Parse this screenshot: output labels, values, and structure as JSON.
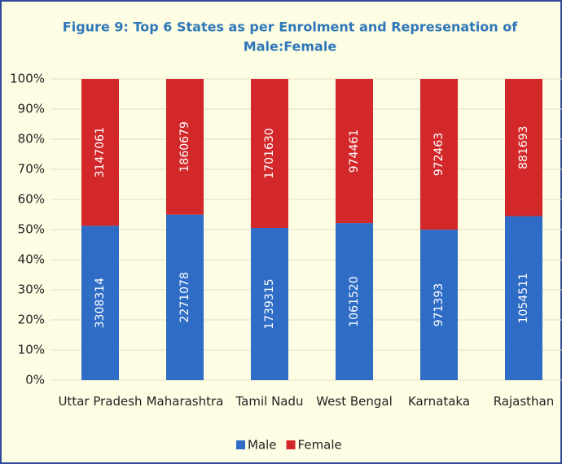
{
  "chart_data": {
    "type": "bar",
    "stacked": "percent",
    "title": [
      "Figure 9: Top 6 States as per Enrolment and Represenation of",
      "Male:Female"
    ],
    "categories": [
      "Uttar Pradesh",
      "Maharashtra",
      "Tamil Nadu",
      "West Bengal",
      "Karnataka",
      "Rajasthan"
    ],
    "series": [
      {
        "name": "Male",
        "color": "#2e6cc6",
        "values": [
          3308314,
          2271078,
          1739315,
          1061520,
          971393,
          1054511
        ]
      },
      {
        "name": "Female",
        "color": "#d3282a",
        "values": [
          3147061,
          1860679,
          1701630,
          974461,
          972463,
          881693
        ]
      }
    ],
    "ylim": [
      0,
      100
    ],
    "yticks": [
      {
        "value": 0,
        "label": "0%"
      },
      {
        "value": 10,
        "label": "10%"
      },
      {
        "value": 20,
        "label": "20%"
      },
      {
        "value": 30,
        "label": "30%"
      },
      {
        "value": 40,
        "label": "40%"
      },
      {
        "value": 50,
        "label": "50%"
      },
      {
        "value": 60,
        "label": "60%"
      },
      {
        "value": 70,
        "label": "70%"
      },
      {
        "value": 80,
        "label": "80%"
      },
      {
        "value": 90,
        "label": "90%"
      },
      {
        "value": 100,
        "label": "100%"
      }
    ],
    "grid": true,
    "legend": "bottom"
  }
}
